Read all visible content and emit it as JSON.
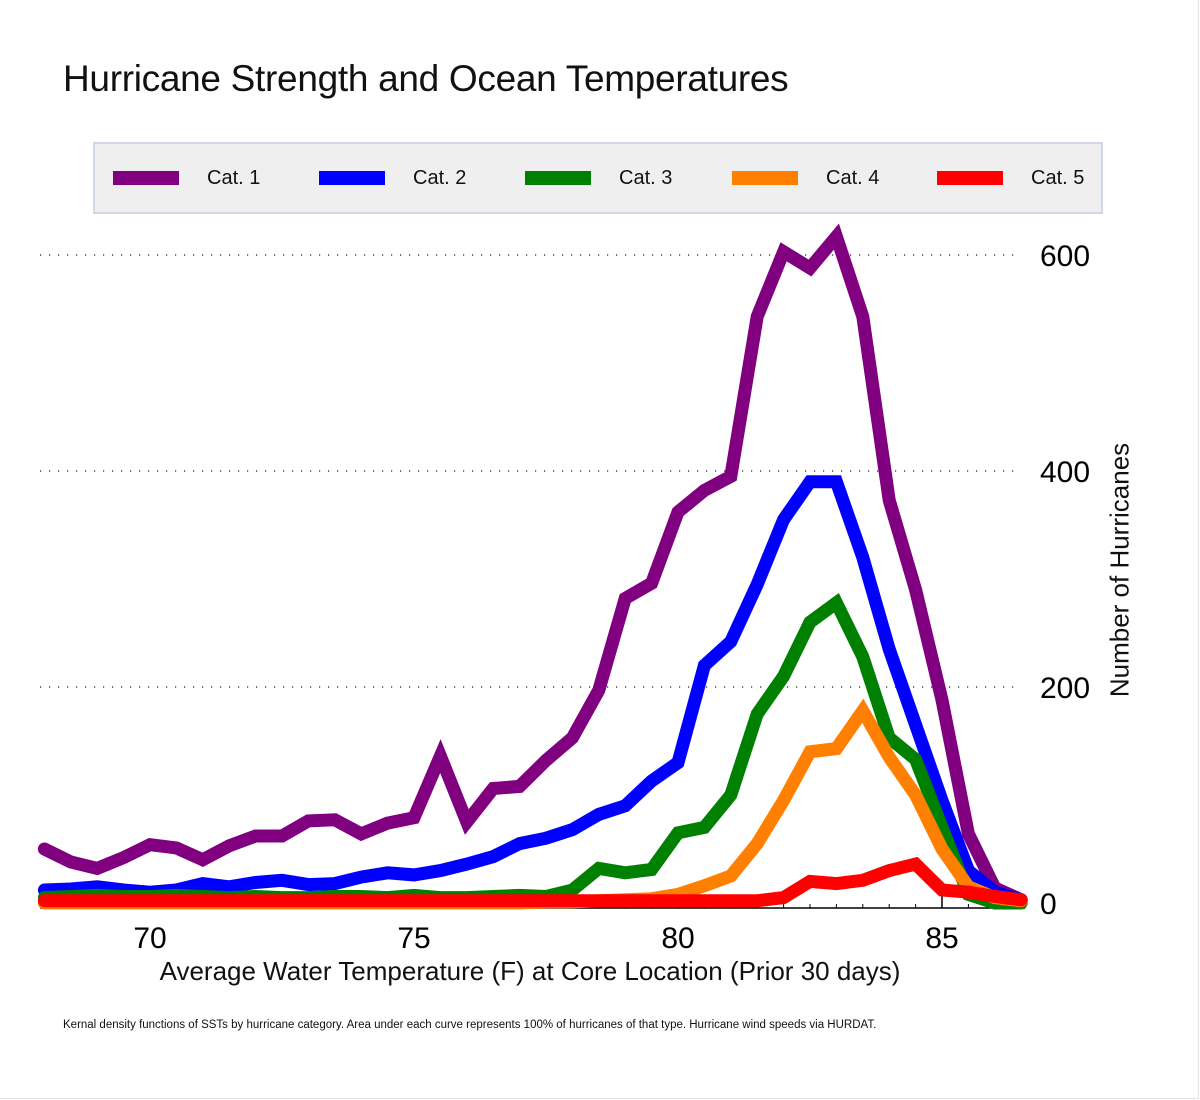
{
  "chart_data": {
    "type": "line",
    "title": "Hurricane Strength and Ocean Temperatures",
    "xlabel": "Average Water Temperature (F) at Core Location (Prior 30 days)",
    "ylabel": "Number of Hurricanes",
    "caption": "Kernal density functions of SSTs by hurricane category. Area under each curve represents 100% of hurricanes of that type. Hurricane wind speeds via HURDAT.",
    "xlim": [
      68,
      86.5
    ],
    "ylim": [
      0,
      620
    ],
    "x_ticks": [
      70,
      75,
      80,
      85
    ],
    "y_ticks": [
      0,
      200,
      400,
      600
    ],
    "grid": "horizontal dotted",
    "y_axis_side": "right",
    "legend_position": "top",
    "x": [
      68,
      68.5,
      69,
      69.5,
      70,
      70.5,
      71,
      71.5,
      72,
      72.5,
      73,
      73.5,
      74,
      74.5,
      75,
      75.5,
      76,
      76.5,
      77,
      77.5,
      78,
      78.5,
      79,
      79.5,
      80,
      80.5,
      81,
      81.5,
      82,
      82.5,
      83,
      83.5,
      84,
      84.5,
      85,
      85.5,
      86,
      86.5
    ],
    "series": [
      {
        "name": "Cat. 1",
        "color": "#800080",
        "values": [
          50,
          38,
          32,
          42,
          54,
          51,
          40,
          53,
          62,
          62,
          76,
          77,
          64,
          74,
          79,
          136,
          75,
          106,
          108,
          132,
          153,
          197,
          282,
          296,
          362,
          382,
          395,
          543,
          603,
          588,
          617,
          543,
          373,
          290,
          188,
          64,
          14,
          3
        ]
      },
      {
        "name": "Cat. 2",
        "color": "#0000ff",
        "values": [
          12,
          13,
          15,
          12,
          10,
          12,
          18,
          15,
          19,
          21,
          17,
          18,
          24,
          28,
          26,
          30,
          36,
          43,
          55,
          60,
          68,
          82,
          90,
          113,
          130,
          220,
          242,
          295,
          355,
          390,
          390,
          320,
          235,
          165,
          95,
          30,
          10,
          3
        ]
      },
      {
        "name": "Cat. 3",
        "color": "#008000",
        "values": [
          5,
          6,
          7,
          6,
          6,
          7,
          6,
          5,
          6,
          5,
          5,
          6,
          6,
          5,
          7,
          5,
          5,
          6,
          7,
          6,
          12,
          32,
          28,
          31,
          65,
          70,
          100,
          175,
          210,
          260,
          278,
          228,
          153,
          133,
          70,
          8,
          0,
          0
        ]
      },
      {
        "name": "Cat. 4",
        "color": "#ff8000",
        "values": [
          0,
          0,
          0,
          0,
          0,
          0,
          0,
          0,
          0,
          0,
          0,
          0,
          0,
          0,
          0,
          0,
          0,
          0,
          0,
          1,
          1,
          2,
          3,
          4,
          8,
          16,
          25,
          55,
          95,
          140,
          143,
          178,
          135,
          100,
          50,
          15,
          5,
          2
        ]
      },
      {
        "name": "Cat. 5",
        "color": "#ff0000",
        "values": [
          2,
          2,
          2,
          2,
          2,
          2,
          2,
          2,
          2,
          2,
          2,
          2,
          2,
          2,
          2,
          2,
          2,
          2,
          2,
          2,
          2,
          2,
          2,
          2,
          2,
          2,
          2,
          2,
          5,
          20,
          18,
          21,
          30,
          36,
          12,
          10,
          6,
          3
        ]
      }
    ]
  }
}
